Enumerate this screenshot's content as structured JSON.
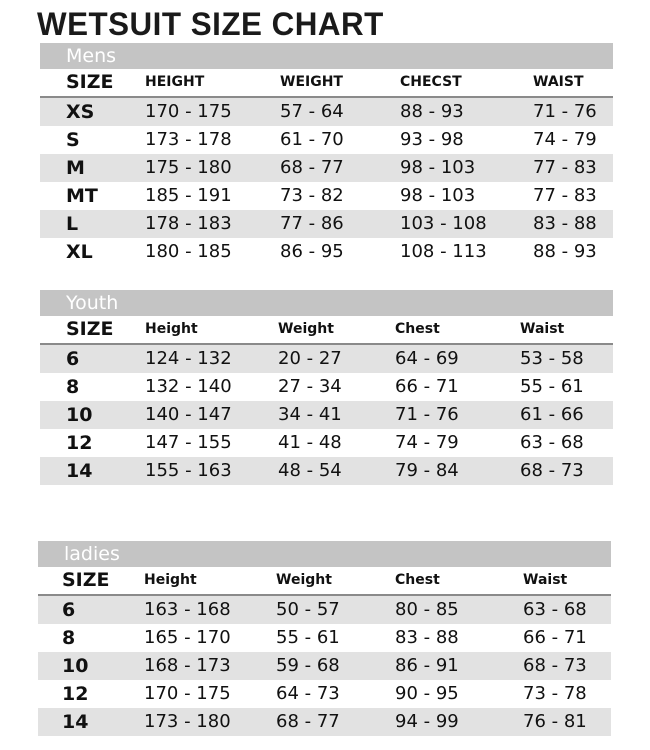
{
  "title": "WETSUIT SIZE CHART",
  "tables": [
    {
      "label": "Mens",
      "headers": [
        "SIZE",
        "HEIGHT",
        "WEIGHT",
        "CHECST",
        "WAIST"
      ],
      "rows": [
        [
          "XS",
          "170 - 175",
          "57 - 64",
          "88 - 93",
          "71 - 76"
        ],
        [
          "S",
          "173 - 178",
          "61 - 70",
          "93 - 98",
          "74 - 79"
        ],
        [
          "M",
          "175 - 180",
          "68 - 77",
          "98 - 103",
          "77 - 83"
        ],
        [
          "MT",
          "185 - 191",
          "73 - 82",
          "98 - 103",
          "77 - 83"
        ],
        [
          "L",
          "178 - 183",
          "77 - 86",
          "103 - 108",
          "83 - 88"
        ],
        [
          "XL",
          "180 - 185",
          "86 - 95",
          "108 - 113",
          "88 - 93"
        ]
      ]
    },
    {
      "label": "Youth",
      "headers": [
        "SIZE",
        "Height",
        "Weight",
        "Chest",
        "Waist"
      ],
      "rows": [
        [
          "6",
          "124 - 132",
          "20 - 27",
          "64 - 69",
          "53 - 58"
        ],
        [
          "8",
          "132 - 140",
          "27 - 34",
          "66 - 71",
          "55 - 61"
        ],
        [
          "10",
          "140 - 147",
          "34 - 41",
          "71 - 76",
          "61 - 66"
        ],
        [
          "12",
          "147 - 155",
          "41 - 48",
          "74 - 79",
          "63 - 68"
        ],
        [
          "14",
          "155 - 163",
          "48 - 54",
          "79 - 84",
          "68 - 73"
        ]
      ]
    },
    {
      "label": "ladies",
      "headers": [
        "SIZE",
        "Height",
        "Weight",
        "Chest",
        "Waist"
      ],
      "rows": [
        [
          "6",
          "163 - 168",
          "50 - 57",
          "80 - 85",
          "63 - 68"
        ],
        [
          "8",
          "165 - 170",
          "55 - 61",
          "83 - 88",
          "66 - 71"
        ],
        [
          "10",
          "168 - 173",
          "59 - 68",
          "86 - 91",
          "68 - 73"
        ],
        [
          "12",
          "170 - 175",
          "64 - 73",
          "90 - 95",
          "73 - 78"
        ],
        [
          "14",
          "173 - 180",
          "68 - 77",
          "94 - 99",
          "76 - 81"
        ]
      ]
    }
  ]
}
